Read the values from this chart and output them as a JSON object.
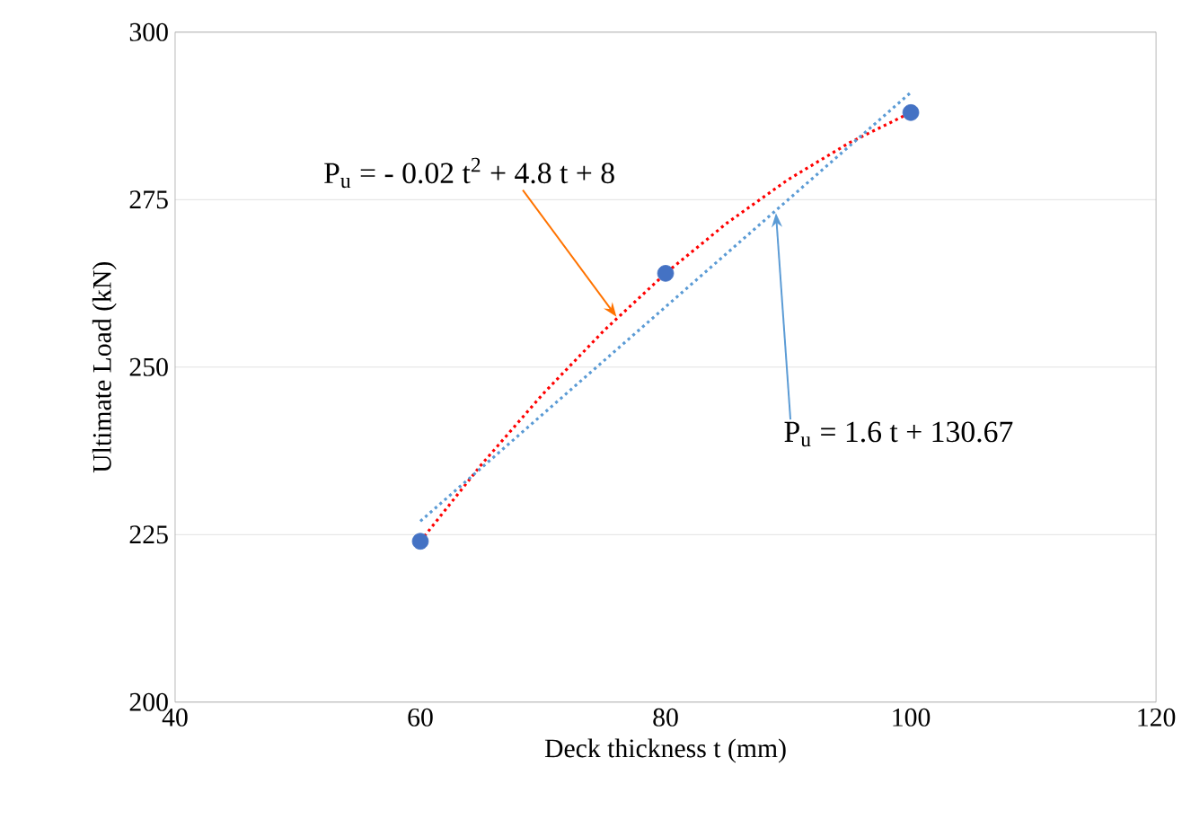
{
  "chart_data": {
    "type": "scatter",
    "xlabel": "Deck thickness t (mm)",
    "ylabel": "Ultimate Load (kN)",
    "xlim": [
      40,
      120
    ],
    "xticks": [
      40,
      60,
      80,
      100,
      120
    ],
    "ylim": [
      200,
      300
    ],
    "yticks": [
      200,
      225,
      250,
      275,
      300
    ],
    "grid": "y",
    "series": [
      {
        "type": "line",
        "color": "#ff0000",
        "line_style": "dotted",
        "marker": "none",
        "x": [
          60,
          65,
          70,
          75,
          80,
          85,
          90,
          95,
          100
        ],
        "values": [
          224,
          235.5,
          246,
          255.5,
          264,
          271.5,
          278,
          283.5,
          288
        ]
      },
      {
        "type": "line",
        "color": "#5b9bd5",
        "line_style": "dotted",
        "marker": "none",
        "x": [
          60,
          100
        ],
        "values": [
          227,
          291
        ]
      },
      {
        "color": "#4472c4",
        "marker": "circle",
        "x": [
          60,
          80,
          100
        ],
        "values": [
          224,
          264,
          288
        ]
      }
    ],
    "annotations": [
      {
        "text": "P$_{u}$ = - 0.02 t$^{2}$ + 4.8 t + 8",
        "x": 76,
        "y": 257.5
      },
      {
        "text": "P$_{u}$ = 1.6 t + 130.67",
        "x": 89,
        "y": 273
      }
    ]
  }
}
